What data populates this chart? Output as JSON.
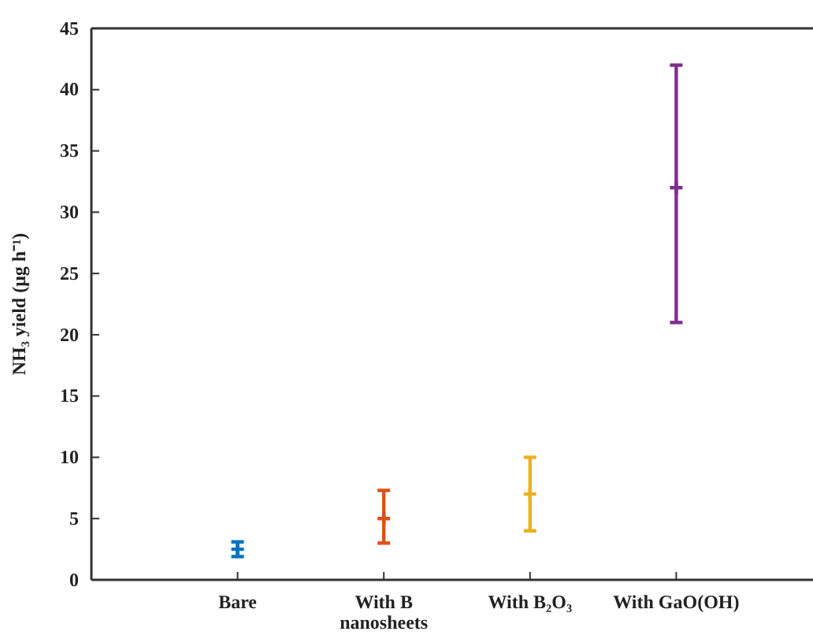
{
  "chart_data": {
    "type": "scatter",
    "ylabel": "NH₃ yield (μg h⁻¹)",
    "categories": [
      "Bare",
      "With B nanosheets",
      "With B₂O₃",
      "With GaO(OH)"
    ],
    "values": [
      2.5,
      5,
      7,
      32
    ],
    "errors": [
      [
        1.9,
        3.1
      ],
      [
        3,
        7.3
      ],
      [
        4,
        10
      ],
      [
        21,
        42
      ]
    ],
    "colors": [
      "#0072bd",
      "#d95319",
      "#edb120",
      "#7e2f8e"
    ],
    "marker": "cross",
    "ylim": [
      0,
      45
    ],
    "yticks": [
      0,
      5,
      10,
      15,
      20,
      25,
      30,
      35,
      40,
      45
    ],
    "grid": false
  }
}
